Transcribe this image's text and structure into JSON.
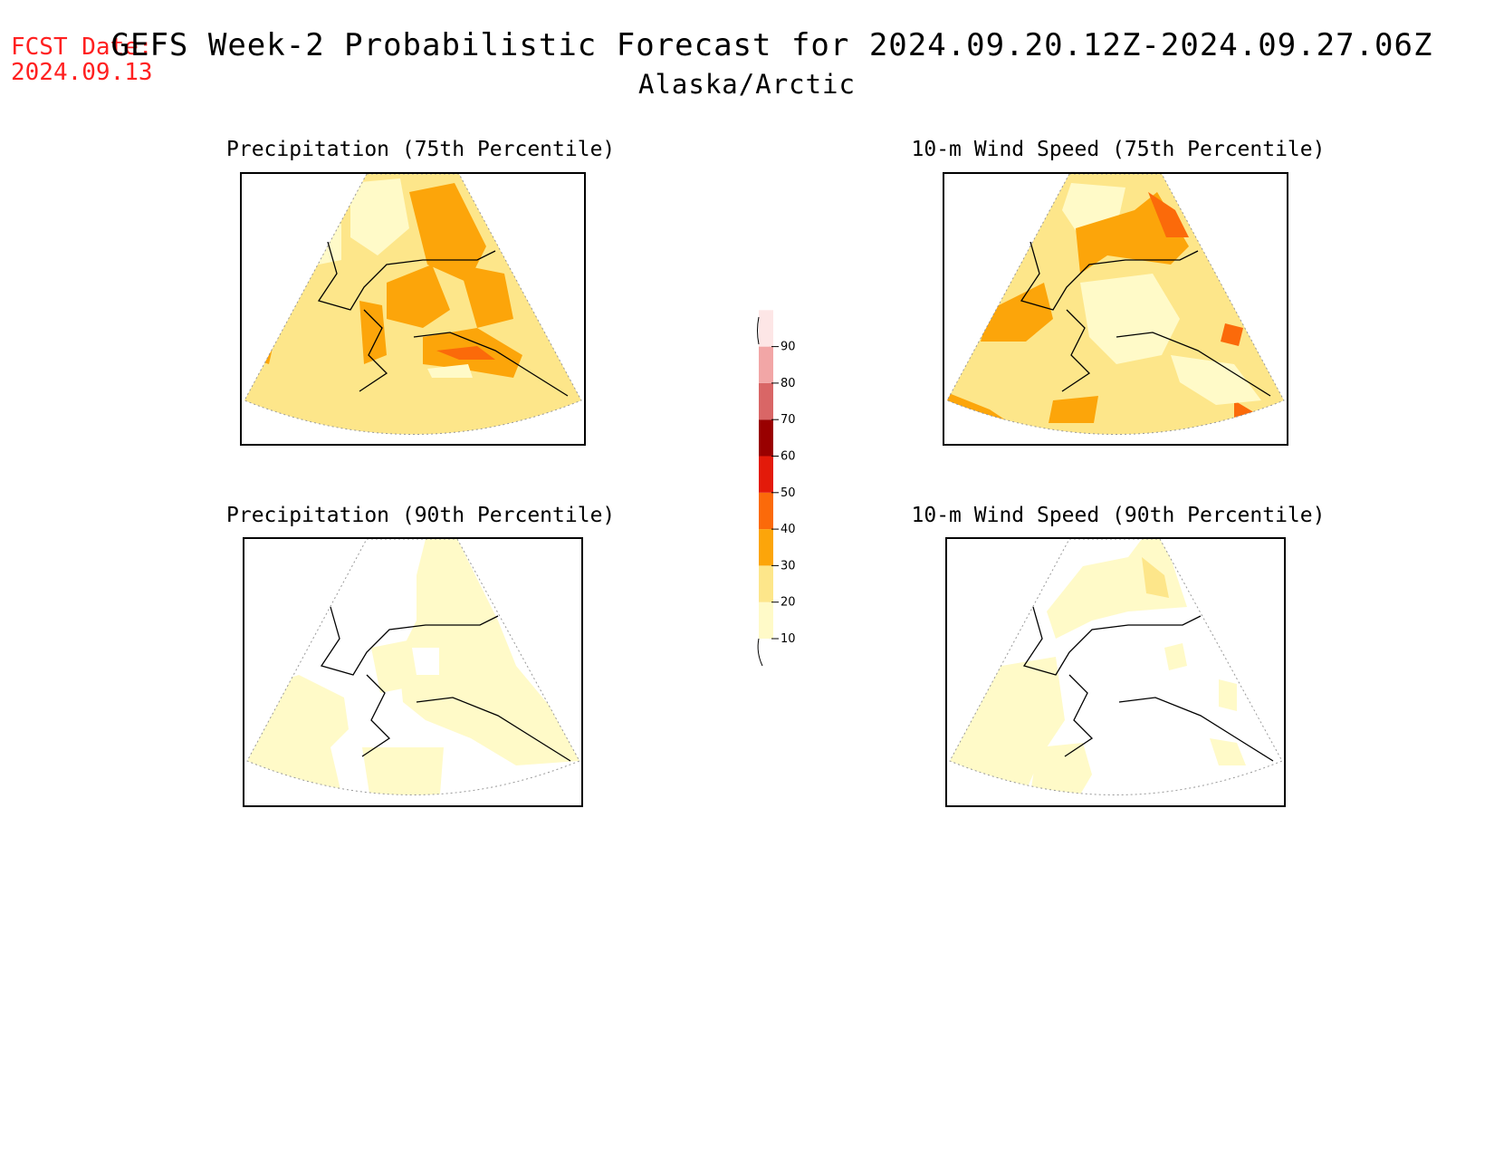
{
  "header": {
    "fcst_label": "FCST Date:",
    "fcst_date": "2024.09.13",
    "title": "GEFS Week-2 Probabilistic Forecast for 2024.09.20.12Z-2024.09.27.06Z",
    "subtitle": "Alaska/Arctic"
  },
  "panels": [
    {
      "title": "Precipitation (75th Percentile)"
    },
    {
      "title": "10-m Wind Speed (75th Percentile)"
    },
    {
      "title": "Precipitation (90th Percentile)"
    },
    {
      "title": "10-m Wind Speed (90th Percentile)"
    }
  ],
  "colorbar": {
    "levels": [
      "10",
      "20",
      "30",
      "40",
      "50",
      "60",
      "70",
      "80",
      "90"
    ],
    "colors": [
      "#fffac8",
      "#fde68a",
      "#fca50a",
      "#fb6a0a",
      "#e31a0a",
      "#990000",
      "#d96666",
      "#f2a6a6",
      "#fde6e6"
    ]
  }
}
